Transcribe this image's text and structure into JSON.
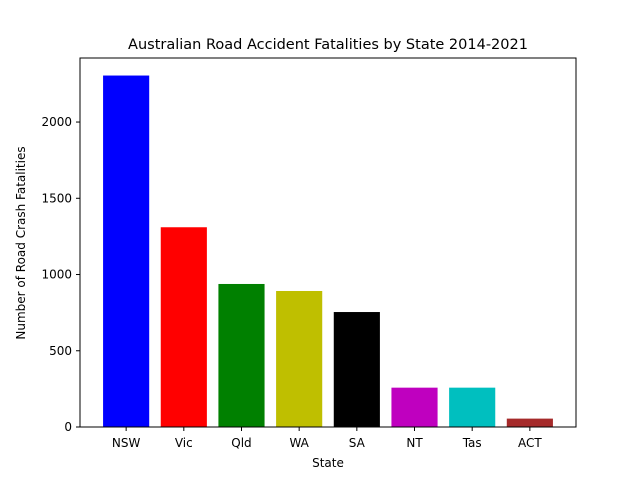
{
  "chart_data": {
    "type": "bar",
    "title": "Australian Road Accident Fatalities by State 2014-2021",
    "xlabel": "State",
    "ylabel": "Number of Road Crash Fatalities",
    "categories": [
      "NSW",
      "Vic",
      "Qld",
      "WA",
      "SA",
      "NT",
      "Tas",
      "ACT"
    ],
    "values": [
      2305,
      1310,
      938,
      892,
      754,
      258,
      258,
      55
    ],
    "colors": [
      "#0000ff",
      "#ff0000",
      "#008000",
      "#bfbf00",
      "#000000",
      "#bf00bf",
      "#00bfbf",
      "#a52a2a"
    ],
    "ylim": [
      0,
      2420
    ],
    "yticks": [
      0,
      500,
      1000,
      1500,
      2000
    ],
    "grid": false,
    "legend": "none"
  }
}
